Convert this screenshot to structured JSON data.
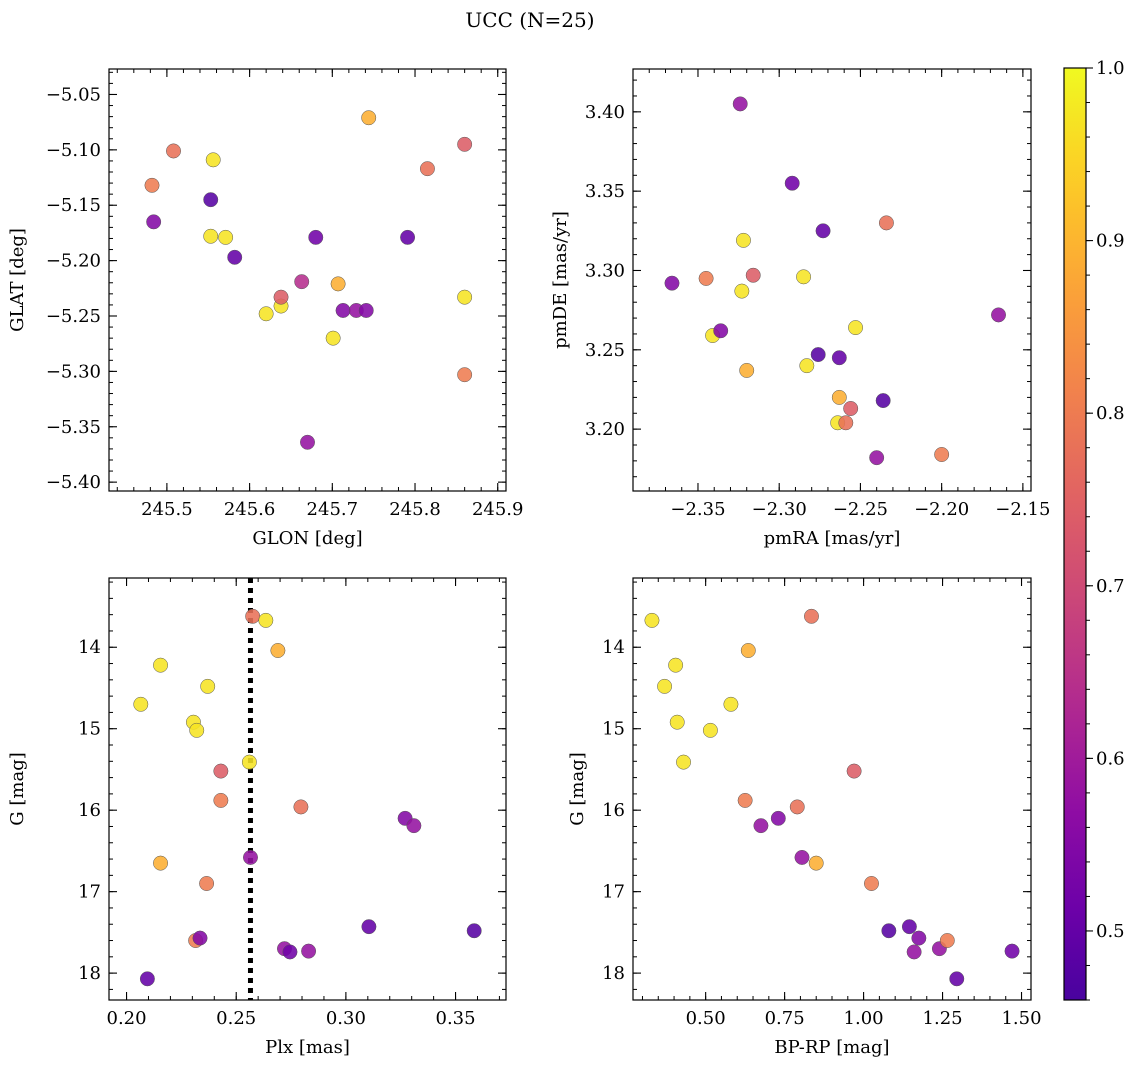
{
  "figure": {
    "title": "UCC (N=25)",
    "colormap": "plasma"
  },
  "colorbar": {
    "min": 0.46,
    "max": 1.0,
    "ticks": [
      0.5,
      0.6,
      0.7,
      0.8,
      0.9,
      1.0
    ],
    "tick_labels": [
      "0.5",
      "0.6",
      "0.7",
      "0.8",
      "0.9",
      "1.0"
    ]
  },
  "chart_data": [
    {
      "type": "scatter",
      "xlabel": "GLON [deg]",
      "ylabel": "GLAT [deg]",
      "xlim": [
        245.43,
        245.91
      ],
      "ylim": [
        -5.408,
        -5.027
      ],
      "y_inverted": false,
      "xticks": [
        245.5,
        245.6,
        245.7,
        245.8,
        245.9
      ],
      "xtick_labels": [
        "245.5",
        "245.6",
        "245.7",
        "245.8",
        "245.9"
      ],
      "yticks": [
        -5.4,
        -5.35,
        -5.3,
        -5.25,
        -5.2,
        -5.15,
        -5.1,
        -5.05
      ],
      "ytick_labels": [
        "−5.40",
        "−5.35",
        "−5.30",
        "−5.25",
        "−5.20",
        "−5.15",
        "−5.10",
        "−5.05"
      ],
      "points": [
        {
          "x": 245.482,
          "y": -5.132,
          "c": 0.8
        },
        {
          "x": 245.484,
          "y": -5.165,
          "c": 0.55
        },
        {
          "x": 245.508,
          "y": -5.101,
          "c": 0.78
        },
        {
          "x": 245.553,
          "y": -5.145,
          "c": 0.48
        },
        {
          "x": 245.556,
          "y": -5.109,
          "c": 0.97
        },
        {
          "x": 245.553,
          "y": -5.178,
          "c": 0.97
        },
        {
          "x": 245.571,
          "y": -5.179,
          "c": 0.97
        },
        {
          "x": 245.582,
          "y": -5.197,
          "c": 0.5
        },
        {
          "x": 245.62,
          "y": -5.248,
          "c": 0.97
        },
        {
          "x": 245.638,
          "y": -5.241,
          "c": 0.97
        },
        {
          "x": 245.638,
          "y": -5.233,
          "c": 0.74
        },
        {
          "x": 245.663,
          "y": -5.219,
          "c": 0.64
        },
        {
          "x": 245.67,
          "y": -5.364,
          "c": 0.58
        },
        {
          "x": 245.68,
          "y": -5.179,
          "c": 0.52
        },
        {
          "x": 245.701,
          "y": -5.27,
          "c": 0.97
        },
        {
          "x": 245.707,
          "y": -5.221,
          "c": 0.89
        },
        {
          "x": 245.713,
          "y": -5.245,
          "c": 0.55
        },
        {
          "x": 245.729,
          "y": -5.245,
          "c": 0.58
        },
        {
          "x": 245.741,
          "y": -5.245,
          "c": 0.55
        },
        {
          "x": 245.744,
          "y": -5.071,
          "c": 0.89
        },
        {
          "x": 245.791,
          "y": -5.179,
          "c": 0.5
        },
        {
          "x": 245.815,
          "y": -5.117,
          "c": 0.78
        },
        {
          "x": 245.86,
          "y": -5.095,
          "c": 0.74
        },
        {
          "x": 245.86,
          "y": -5.233,
          "c": 0.97
        },
        {
          "x": 245.86,
          "y": -5.303,
          "c": 0.8
        }
      ]
    },
    {
      "type": "scatter",
      "xlabel": "pmRA [mas/yr]",
      "ylabel": "pmDE [mas/yr]",
      "xlim": [
        -2.39,
        -2.145
      ],
      "ylim": [
        3.161,
        3.427
      ],
      "y_inverted": false,
      "xticks": [
        -2.35,
        -2.3,
        -2.25,
        -2.2,
        -2.15
      ],
      "xtick_labels": [
        "−2.35",
        "−2.30",
        "−2.25",
        "−2.20",
        "−2.15"
      ],
      "yticks": [
        3.2,
        3.25,
        3.3,
        3.35,
        3.4
      ],
      "ytick_labels": [
        "3.20",
        "3.25",
        "3.30",
        "3.35",
        "3.40"
      ],
      "points": [
        {
          "x": -2.366,
          "y": 3.292,
          "c": 0.55
        },
        {
          "x": -2.345,
          "y": 3.295,
          "c": 0.8
        },
        {
          "x": -2.341,
          "y": 3.259,
          "c": 0.97
        },
        {
          "x": -2.336,
          "y": 3.262,
          "c": 0.55
        },
        {
          "x": -2.324,
          "y": 3.405,
          "c": 0.58
        },
        {
          "x": -2.323,
          "y": 3.287,
          "c": 0.97
        },
        {
          "x": -2.322,
          "y": 3.319,
          "c": 0.97
        },
        {
          "x": -2.32,
          "y": 3.237,
          "c": 0.89
        },
        {
          "x": -2.316,
          "y": 3.297,
          "c": 0.74
        },
        {
          "x": -2.292,
          "y": 3.355,
          "c": 0.52
        },
        {
          "x": -2.285,
          "y": 3.296,
          "c": 0.97
        },
        {
          "x": -2.283,
          "y": 3.24,
          "c": 0.97
        },
        {
          "x": -2.276,
          "y": 3.247,
          "c": 0.48
        },
        {
          "x": -2.273,
          "y": 3.325,
          "c": 0.5
        },
        {
          "x": -2.264,
          "y": 3.204,
          "c": 0.97
        },
        {
          "x": -2.263,
          "y": 3.22,
          "c": 0.89
        },
        {
          "x": -2.263,
          "y": 3.245,
          "c": 0.5
        },
        {
          "x": -2.259,
          "y": 3.204,
          "c": 0.78
        },
        {
          "x": -2.256,
          "y": 3.213,
          "c": 0.74
        },
        {
          "x": -2.253,
          "y": 3.264,
          "c": 0.97
        },
        {
          "x": -2.24,
          "y": 3.182,
          "c": 0.58
        },
        {
          "x": -2.236,
          "y": 3.218,
          "c": 0.48
        },
        {
          "x": -2.234,
          "y": 3.33,
          "c": 0.78
        },
        {
          "x": -2.2,
          "y": 3.184,
          "c": 0.8
        },
        {
          "x": -2.165,
          "y": 3.272,
          "c": 0.58
        }
      ]
    },
    {
      "type": "scatter",
      "xlabel": "Plx [mas]",
      "ylabel": "G [mag]",
      "xlim": [
        0.192,
        0.373
      ],
      "ylim": [
        13.15,
        18.33
      ],
      "y_inverted": true,
      "xticks": [
        0.2,
        0.25,
        0.3,
        0.35
      ],
      "xtick_labels": [
        "0.20",
        "0.25",
        "0.30",
        "0.35"
      ],
      "yticks": [
        14,
        15,
        16,
        17,
        18
      ],
      "ytick_labels": [
        "14",
        "15",
        "16",
        "17",
        "18"
      ],
      "vline": {
        "x": 0.2565,
        "style": "dotted"
      },
      "points": [
        {
          "x": 0.2065,
          "y": 14.7,
          "c": 0.97
        },
        {
          "x": 0.2095,
          "y": 18.07,
          "c": 0.5
        },
        {
          "x": 0.2155,
          "y": 14.22,
          "c": 0.97
        },
        {
          "x": 0.2155,
          "y": 16.65,
          "c": 0.89
        },
        {
          "x": 0.2305,
          "y": 14.92,
          "c": 0.97
        },
        {
          "x": 0.2315,
          "y": 17.6,
          "c": 0.8
        },
        {
          "x": 0.232,
          "y": 15.02,
          "c": 0.97
        },
        {
          "x": 0.2335,
          "y": 17.57,
          "c": 0.55
        },
        {
          "x": 0.2365,
          "y": 16.9,
          "c": 0.8
        },
        {
          "x": 0.237,
          "y": 14.48,
          "c": 0.97
        },
        {
          "x": 0.243,
          "y": 15.52,
          "c": 0.74
        },
        {
          "x": 0.243,
          "y": 15.88,
          "c": 0.8
        },
        {
          "x": 0.256,
          "y": 15.41,
          "c": 0.97
        },
        {
          "x": 0.2565,
          "y": 16.58,
          "c": 0.58
        },
        {
          "x": 0.2575,
          "y": 13.62,
          "c": 0.78
        },
        {
          "x": 0.2635,
          "y": 13.67,
          "c": 0.97
        },
        {
          "x": 0.269,
          "y": 14.04,
          "c": 0.89
        },
        {
          "x": 0.272,
          "y": 17.7,
          "c": 0.58
        },
        {
          "x": 0.2745,
          "y": 17.74,
          "c": 0.52
        },
        {
          "x": 0.2795,
          "y": 15.96,
          "c": 0.78
        },
        {
          "x": 0.283,
          "y": 17.73,
          "c": 0.58
        },
        {
          "x": 0.3105,
          "y": 17.43,
          "c": 0.5
        },
        {
          "x": 0.327,
          "y": 16.1,
          "c": 0.55
        },
        {
          "x": 0.331,
          "y": 16.19,
          "c": 0.58
        },
        {
          "x": 0.3585,
          "y": 17.48,
          "c": 0.48
        }
      ]
    },
    {
      "type": "scatter",
      "xlabel": "BP-RP [mag]",
      "ylabel": "G [mag]",
      "xlim": [
        0.27,
        1.53
      ],
      "ylim": [
        13.15,
        18.33
      ],
      "y_inverted": true,
      "xticks": [
        0.5,
        0.75,
        1.0,
        1.25,
        1.5
      ],
      "xtick_labels": [
        "0.50",
        "0.75",
        "1.00",
        "1.25",
        "1.50"
      ],
      "yticks": [
        14,
        15,
        16,
        17,
        18
      ],
      "ytick_labels": [
        "14",
        "15",
        "16",
        "17",
        "18"
      ],
      "points": [
        {
          "x": 0.33,
          "y": 13.67,
          "c": 0.97
        },
        {
          "x": 0.37,
          "y": 14.48,
          "c": 0.97
        },
        {
          "x": 0.405,
          "y": 14.22,
          "c": 0.97
        },
        {
          "x": 0.41,
          "y": 14.92,
          "c": 0.97
        },
        {
          "x": 0.43,
          "y": 15.41,
          "c": 0.97
        },
        {
          "x": 0.515,
          "y": 15.02,
          "c": 0.97
        },
        {
          "x": 0.58,
          "y": 14.7,
          "c": 0.97
        },
        {
          "x": 0.625,
          "y": 15.88,
          "c": 0.8
        },
        {
          "x": 0.635,
          "y": 14.04,
          "c": 0.89
        },
        {
          "x": 0.675,
          "y": 16.19,
          "c": 0.58
        },
        {
          "x": 0.73,
          "y": 16.1,
          "c": 0.55
        },
        {
          "x": 0.79,
          "y": 15.96,
          "c": 0.78
        },
        {
          "x": 0.805,
          "y": 16.58,
          "c": 0.58
        },
        {
          "x": 0.835,
          "y": 13.62,
          "c": 0.78
        },
        {
          "x": 0.85,
          "y": 16.65,
          "c": 0.89
        },
        {
          "x": 0.97,
          "y": 15.52,
          "c": 0.74
        },
        {
          "x": 1.025,
          "y": 16.9,
          "c": 0.8
        },
        {
          "x": 1.08,
          "y": 17.48,
          "c": 0.48
        },
        {
          "x": 1.145,
          "y": 17.43,
          "c": 0.5
        },
        {
          "x": 1.16,
          "y": 17.74,
          "c": 0.58
        },
        {
          "x": 1.175,
          "y": 17.57,
          "c": 0.55
        },
        {
          "x": 1.24,
          "y": 17.7,
          "c": 0.58
        },
        {
          "x": 1.265,
          "y": 17.6,
          "c": 0.8
        },
        {
          "x": 1.295,
          "y": 18.07,
          "c": 0.5
        },
        {
          "x": 1.47,
          "y": 17.73,
          "c": 0.52
        }
      ]
    }
  ]
}
